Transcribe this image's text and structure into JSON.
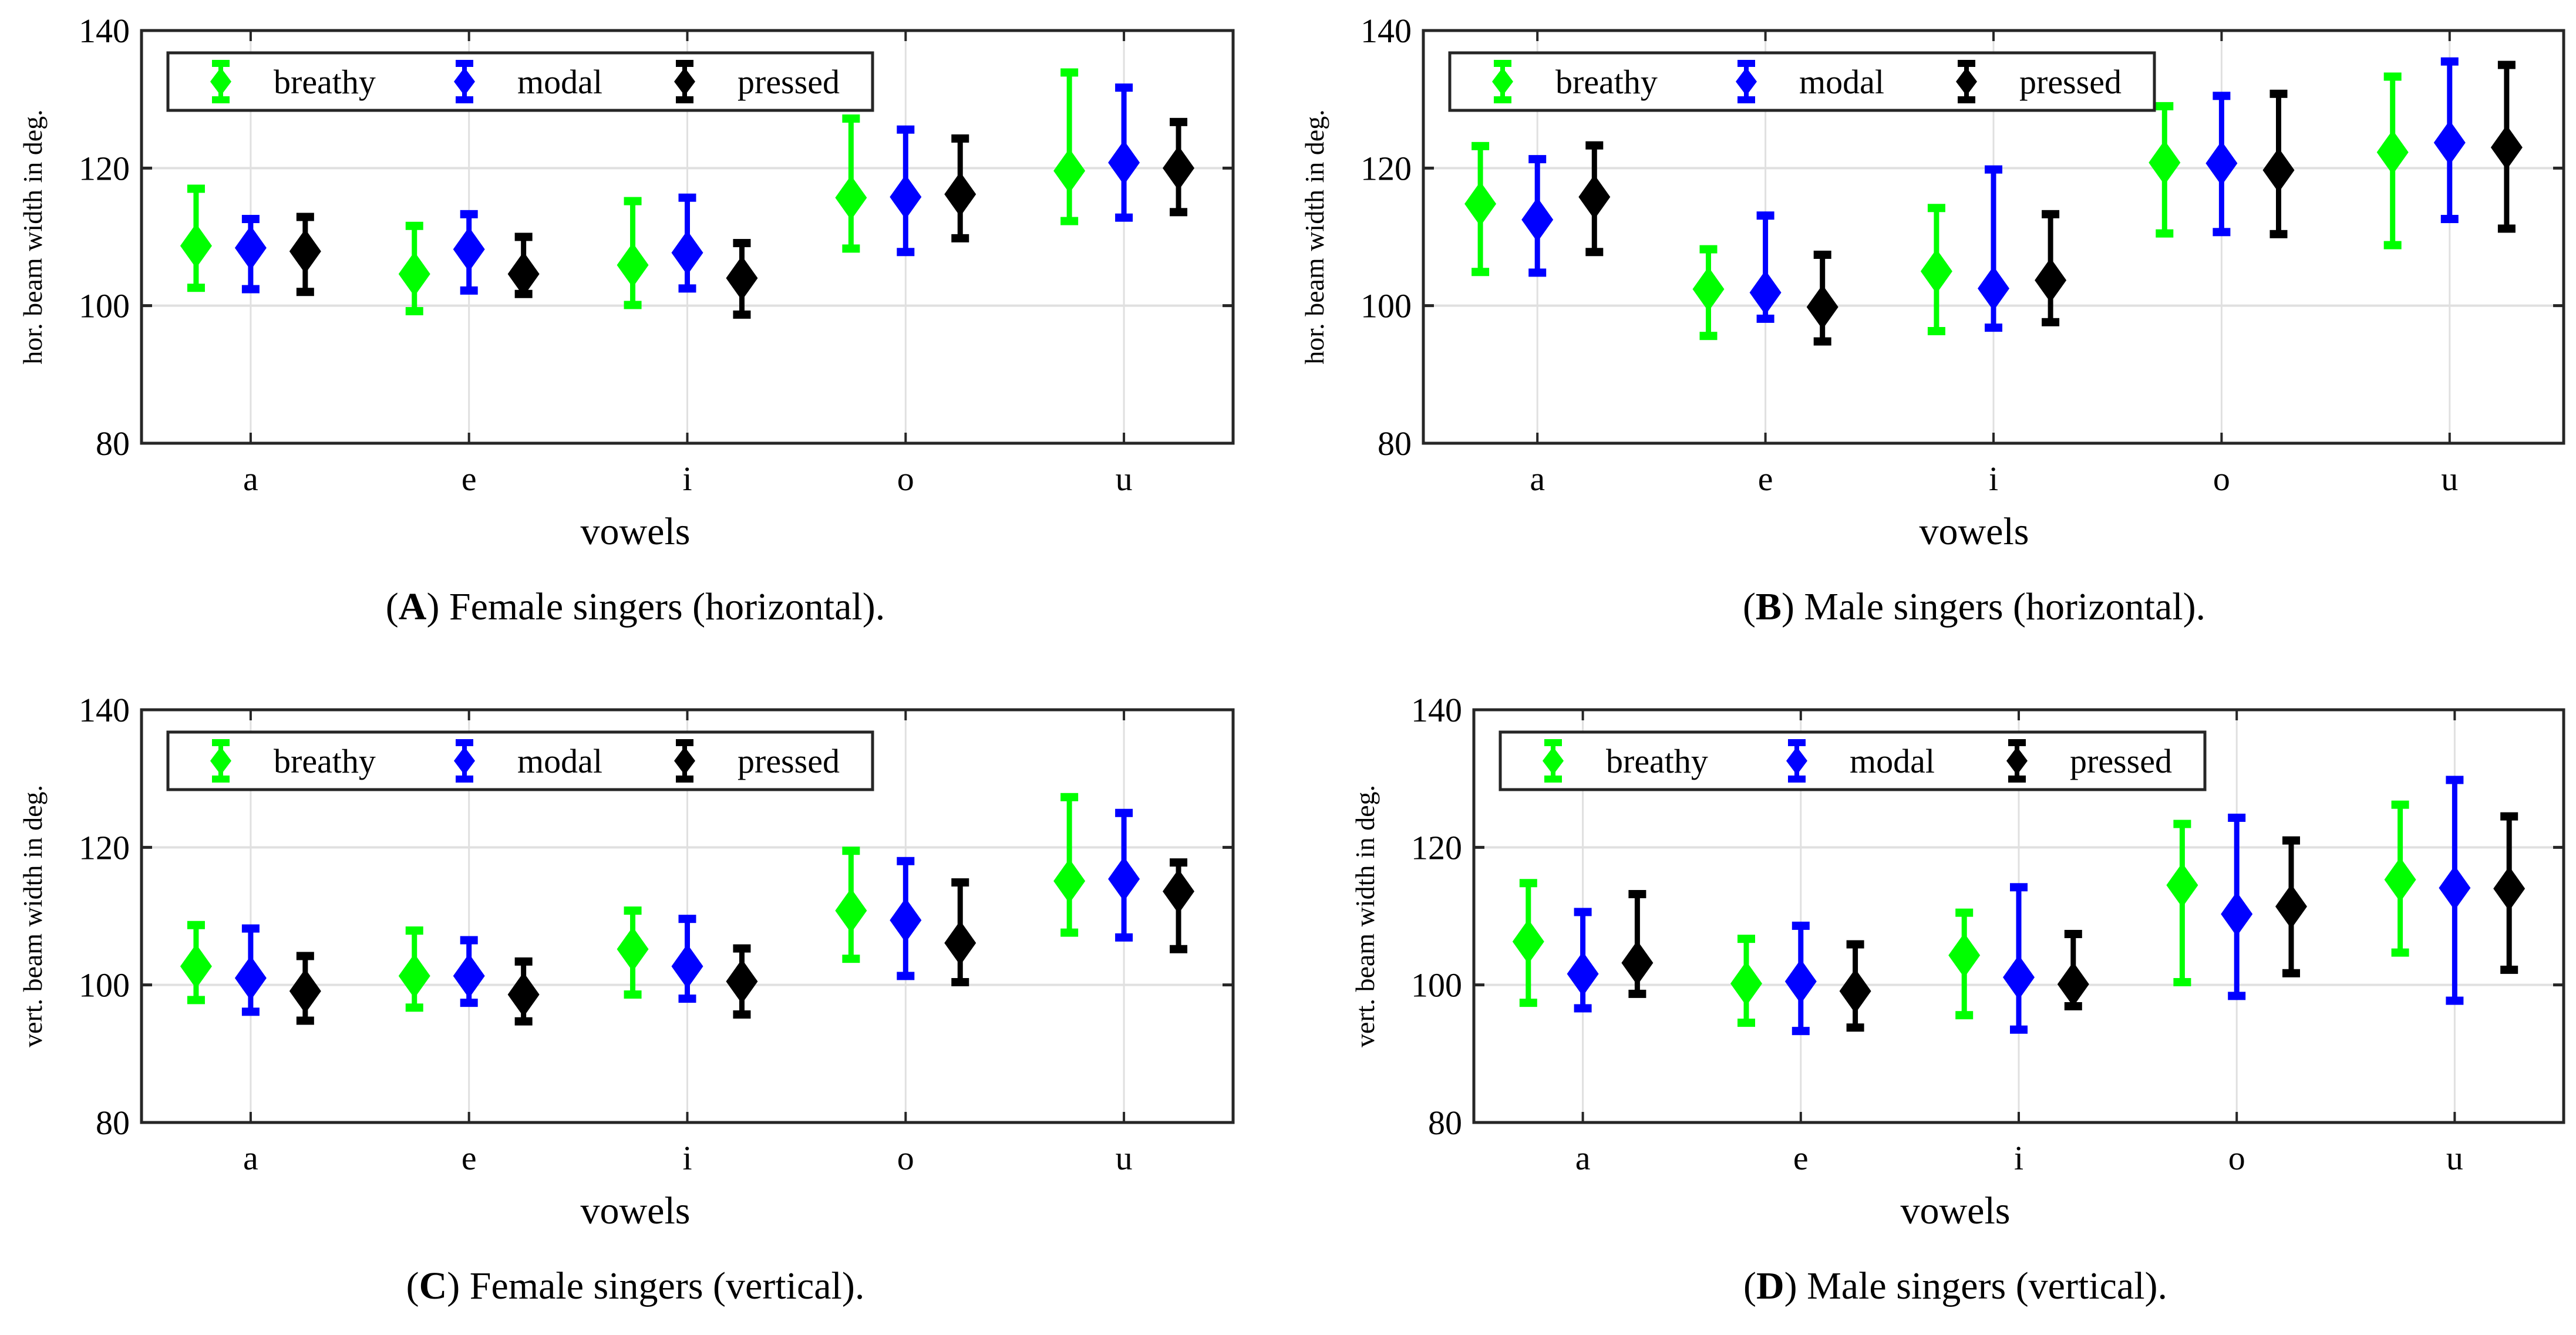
{
  "colors": {
    "breathy": "#00ff00",
    "modal": "#0000ff",
    "pressed": "#000000",
    "grid": "#e0e0e0",
    "axis": "#262626"
  },
  "chart_data": [
    {
      "type": "errorbar",
      "panel": "A",
      "caption": "Female singers (horizontal).",
      "xlabel": "vowels",
      "ylabel": "hor. beam width in deg.",
      "ylim": [
        80,
        140
      ],
      "yticks": [
        "80",
        "100",
        "120",
        "140"
      ],
      "categories": [
        "a",
        "e",
        "i",
        "o",
        "u"
      ],
      "grid": true,
      "legend_placement": "top-left",
      "series": [
        {
          "name": "breathy",
          "values": [
            108.7,
            104.6,
            105.9,
            115.7,
            119.6
          ],
          "upper": [
            117.0,
            111.6,
            115.2,
            127.2,
            133.9
          ],
          "lower": [
            102.6,
            99.2,
            100.1,
            108.3,
            112.3
          ]
        },
        {
          "name": "modal",
          "values": [
            108.4,
            108.2,
            107.7,
            115.8,
            120.8
          ],
          "upper": [
            112.6,
            113.3,
            115.7,
            125.6,
            131.7
          ],
          "lower": [
            102.4,
            102.2,
            102.5,
            107.8,
            112.8
          ]
        },
        {
          "name": "pressed",
          "values": [
            107.9,
            104.6,
            104.0,
            116.2,
            120.0
          ],
          "upper": [
            112.9,
            110.0,
            109.1,
            124.3,
            126.7
          ],
          "lower": [
            102.0,
            101.7,
            98.7,
            109.8,
            113.6
          ]
        }
      ]
    },
    {
      "type": "errorbar",
      "panel": "B",
      "caption": "Male singers (horizontal).",
      "xlabel": "vowels",
      "ylabel": "hor. beam width in deg.",
      "ylim": [
        80,
        140
      ],
      "yticks": [
        "80",
        "100",
        "120",
        "140"
      ],
      "categories": [
        "a",
        "e",
        "i",
        "o",
        "u"
      ],
      "grid": true,
      "legend_placement": "top-left",
      "series": [
        {
          "name": "breathy",
          "values": [
            114.8,
            102.4,
            105.0,
            120.8,
            122.3
          ],
          "upper": [
            123.2,
            108.2,
            114.2,
            129.0,
            133.3
          ],
          "lower": [
            104.9,
            95.6,
            96.3,
            110.5,
            108.8
          ]
        },
        {
          "name": "modal",
          "values": [
            112.5,
            101.9,
            102.5,
            120.7,
            123.7
          ],
          "upper": [
            121.3,
            113.1,
            119.8,
            130.5,
            135.5
          ],
          "lower": [
            104.8,
            98.1,
            96.8,
            110.7,
            112.6
          ]
        },
        {
          "name": "pressed",
          "values": [
            115.8,
            99.8,
            103.7,
            119.7,
            123.0
          ],
          "upper": [
            123.3,
            107.4,
            113.3,
            130.8,
            135.0
          ],
          "lower": [
            107.8,
            94.8,
            97.6,
            110.4,
            111.2
          ]
        }
      ]
    },
    {
      "type": "errorbar",
      "panel": "C",
      "caption": "Female singers (vertical).",
      "xlabel": "vowels",
      "ylabel": "vert. beam width in deg.",
      "ylim": [
        80,
        140
      ],
      "yticks": [
        "80",
        "100",
        "120",
        "140"
      ],
      "categories": [
        "a",
        "e",
        "i",
        "o",
        "u"
      ],
      "grid": true,
      "legend_placement": "top-left",
      "series": [
        {
          "name": "breathy",
          "values": [
            102.7,
            101.3,
            105.2,
            110.8,
            115.1
          ],
          "upper": [
            108.7,
            107.9,
            110.8,
            119.5,
            127.3
          ],
          "lower": [
            97.8,
            96.7,
            98.6,
            103.8,
            107.6
          ]
        },
        {
          "name": "modal",
          "values": [
            101.0,
            101.3,
            102.7,
            109.4,
            115.4
          ],
          "upper": [
            108.2,
            106.5,
            109.6,
            118.0,
            125.0
          ],
          "lower": [
            96.1,
            97.4,
            98.0,
            101.3,
            106.9
          ]
        },
        {
          "name": "pressed",
          "values": [
            99.1,
            98.6,
            100.5,
            106.1,
            113.6
          ],
          "upper": [
            104.2,
            103.4,
            105.3,
            114.9,
            117.8
          ],
          "lower": [
            94.8,
            94.7,
            95.7,
            100.4,
            105.2
          ]
        }
      ]
    },
    {
      "type": "errorbar",
      "panel": "D",
      "caption": "Male singers (vertical).",
      "xlabel": "vowels",
      "ylabel": "vert. beam width in deg.",
      "ylim": [
        80,
        140
      ],
      "yticks": [
        "80",
        "100",
        "120",
        "140"
      ],
      "categories": [
        "a",
        "e",
        "i",
        "o",
        "u"
      ],
      "grid": true,
      "legend_placement": "top-left",
      "series": [
        {
          "name": "breathy",
          "values": [
            106.3,
            100.2,
            104.3,
            114.5,
            115.3
          ],
          "upper": [
            114.8,
            106.7,
            110.5,
            123.4,
            126.2
          ],
          "lower": [
            97.4,
            94.5,
            95.6,
            100.4,
            104.7
          ]
        },
        {
          "name": "modal",
          "values": [
            101.6,
            100.5,
            101.1,
            110.3,
            114.1
          ],
          "upper": [
            110.6,
            108.6,
            114.2,
            124.3,
            129.8
          ],
          "lower": [
            96.6,
            93.3,
            93.5,
            98.4,
            97.7
          ]
        },
        {
          "name": "pressed",
          "values": [
            103.2,
            99.1,
            100.1,
            111.4,
            114.0
          ],
          "upper": [
            113.2,
            105.9,
            107.4,
            121.0,
            124.5
          ],
          "lower": [
            98.7,
            93.8,
            96.9,
            101.7,
            102.2
          ]
        }
      ]
    }
  ]
}
